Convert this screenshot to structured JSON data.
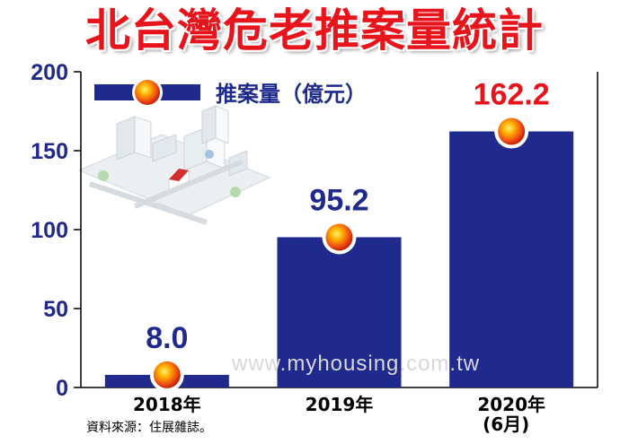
{
  "chart_data": {
    "type": "bar",
    "title": "北台灣危老推案量統計",
    "categories": [
      "2018年",
      "2019年",
      "2020年\n(6月)"
    ],
    "series": [
      {
        "name": "推案量（億元）",
        "values": [
          8.0,
          95.2,
          162.2
        ]
      }
    ],
    "data_labels": [
      "8.0",
      "95.2",
      "162.2"
    ],
    "ylim": [
      0,
      200
    ],
    "yticks": [
      0,
      50,
      100,
      150,
      200
    ],
    "grid": false,
    "legend": "top-left",
    "colors": {
      "bar": "#1f2a8c",
      "label_dark": "#1f2a8c",
      "label_highlight": "#e8141b",
      "title": "#e8141b",
      "marker": "#f0551a"
    }
  },
  "source": "資料來源：住展雜誌。",
  "watermark": "www.myhousing.com.tw"
}
